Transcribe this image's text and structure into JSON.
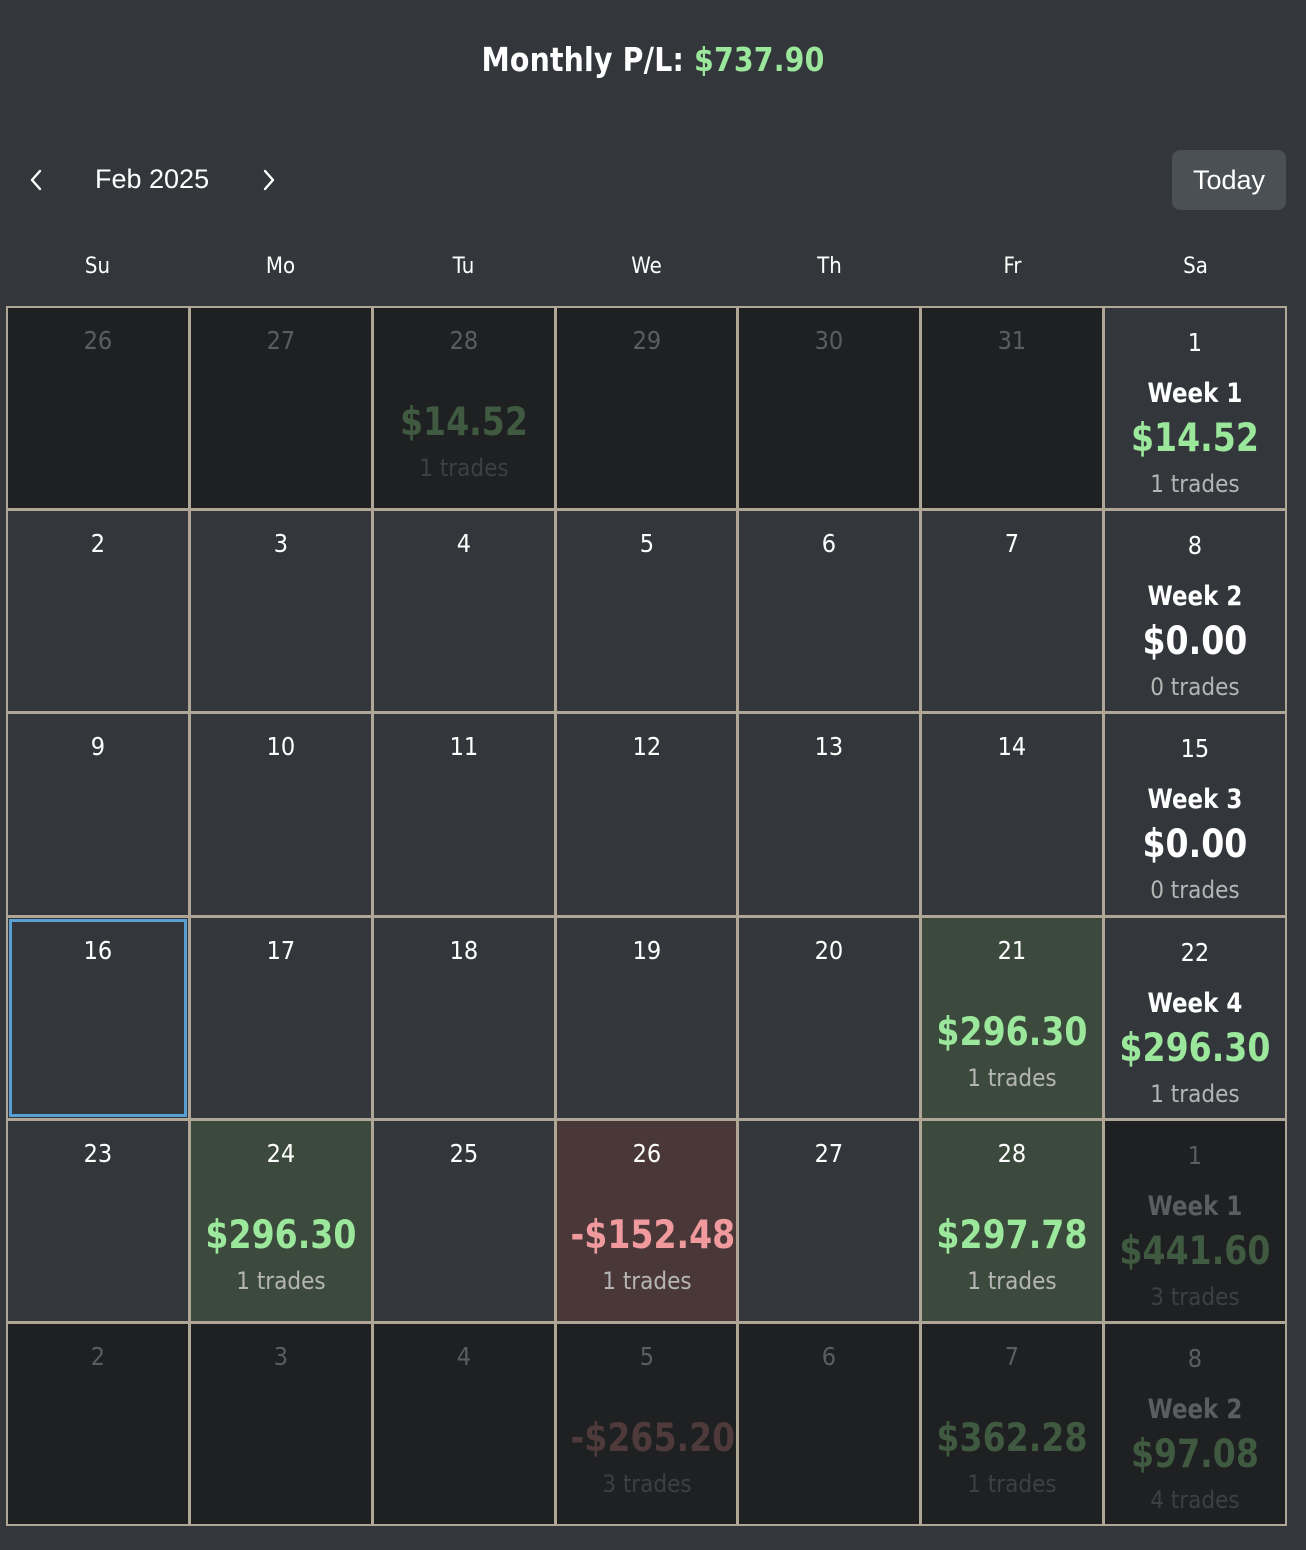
{
  "header": {
    "label": "Monthly P/L:",
    "amount": "$737.90"
  },
  "nav": {
    "month": "Feb 2025",
    "today_label": "Today",
    "prev_icon": "chevron-left-icon",
    "next_icon": "chevron-right-icon"
  },
  "weekdays": [
    "Su",
    "Mo",
    "Tu",
    "We",
    "Th",
    "Fr",
    "Sa"
  ],
  "colors": {
    "positive": "#9be79b",
    "negative": "#f09a9e",
    "positive_cell": "#3b4a3c",
    "negative_cell": "#4a3838",
    "selected_outline": "#5a9fd4"
  },
  "weeks": [
    {
      "days": [
        {
          "day": "26",
          "other": true
        },
        {
          "day": "27",
          "other": true
        },
        {
          "day": "28",
          "other": true,
          "pl": "$14.52",
          "trades": "1 trades",
          "sign": "pos"
        },
        {
          "day": "29",
          "other": true
        },
        {
          "day": "30",
          "other": true
        },
        {
          "day": "31",
          "other": true
        }
      ],
      "summary": {
        "day": "1",
        "other": false,
        "week": "Week 1",
        "pl": "$14.52",
        "trades": "1 trades",
        "sign": "pos"
      }
    },
    {
      "days": [
        {
          "day": "2"
        },
        {
          "day": "3"
        },
        {
          "day": "4"
        },
        {
          "day": "5"
        },
        {
          "day": "6"
        },
        {
          "day": "7"
        }
      ],
      "summary": {
        "day": "8",
        "other": false,
        "week": "Week 2",
        "pl": "$0.00",
        "trades": "0 trades",
        "sign": "zero"
      }
    },
    {
      "days": [
        {
          "day": "9"
        },
        {
          "day": "10"
        },
        {
          "day": "11"
        },
        {
          "day": "12"
        },
        {
          "day": "13"
        },
        {
          "day": "14"
        }
      ],
      "summary": {
        "day": "15",
        "other": false,
        "week": "Week 3",
        "pl": "$0.00",
        "trades": "0 trades",
        "sign": "zero"
      }
    },
    {
      "days": [
        {
          "day": "16",
          "selected": true
        },
        {
          "day": "17"
        },
        {
          "day": "18"
        },
        {
          "day": "19"
        },
        {
          "day": "20"
        },
        {
          "day": "21",
          "pl": "$296.30",
          "trades": "1 trades",
          "sign": "pos"
        }
      ],
      "summary": {
        "day": "22",
        "other": false,
        "week": "Week 4",
        "pl": "$296.30",
        "trades": "1 trades",
        "sign": "pos"
      }
    },
    {
      "days": [
        {
          "day": "23"
        },
        {
          "day": "24",
          "pl": "$296.30",
          "trades": "1 trades",
          "sign": "pos"
        },
        {
          "day": "25"
        },
        {
          "day": "26",
          "pl": "-$152.48",
          "trades": "1 trades",
          "sign": "neg"
        },
        {
          "day": "27"
        },
        {
          "day": "28",
          "pl": "$297.78",
          "trades": "1 trades",
          "sign": "pos"
        }
      ],
      "summary": {
        "day": "1",
        "other": true,
        "week": "Week 1",
        "pl": "$441.60",
        "trades": "3 trades",
        "sign": "pos"
      }
    },
    {
      "days": [
        {
          "day": "2",
          "other": true
        },
        {
          "day": "3",
          "other": true
        },
        {
          "day": "4",
          "other": true
        },
        {
          "day": "5",
          "other": true,
          "pl": "-$265.20",
          "trades": "3 trades",
          "sign": "neg"
        },
        {
          "day": "6",
          "other": true
        },
        {
          "day": "7",
          "other": true,
          "pl": "$362.28",
          "trades": "1 trades",
          "sign": "pos"
        }
      ],
      "summary": {
        "day": "8",
        "other": true,
        "week": "Week 2",
        "pl": "$97.08",
        "trades": "4 trades",
        "sign": "pos"
      }
    }
  ]
}
